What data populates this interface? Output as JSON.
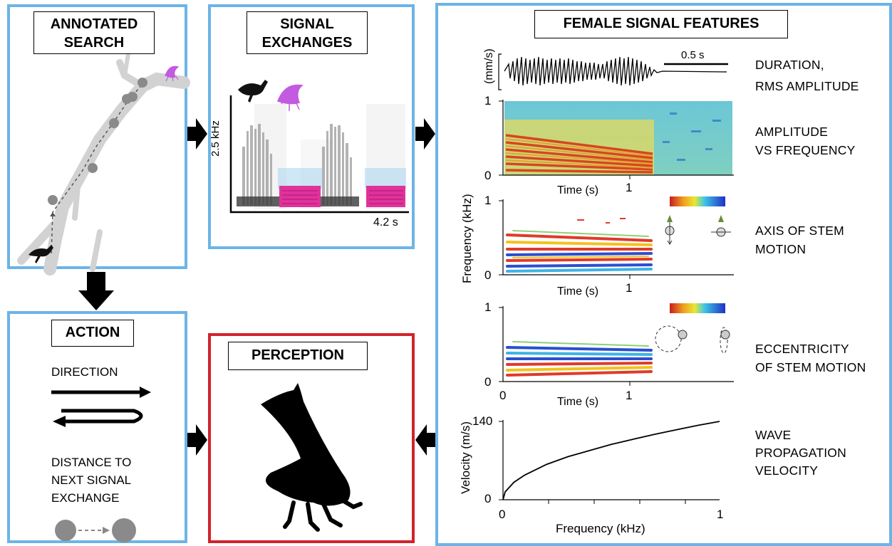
{
  "panels": {
    "annotated_search": {
      "title_line1": "ANNOTATED",
      "title_line2": "SEARCH"
    },
    "signal_exchanges": {
      "title_line1": "SIGNAL",
      "title_line2": "EXCHANGES",
      "y_axis_label": "2.5 kHz",
      "x_axis_label": "4.2 s"
    },
    "action": {
      "title": "ACTION",
      "direction_label": "DIRECTION",
      "distance_line1": "DISTANCE TO",
      "distance_line2": "NEXT SIGNAL",
      "distance_line3": "EXCHANGE"
    },
    "perception": {
      "title": "PERCEPTION"
    },
    "female_signal_features": {
      "title": "FEMALE SIGNAL FEATURES",
      "waveform": {
        "y_label": "(mm/s)",
        "scale_label": "0.5 s"
      },
      "plot_ticks": {
        "zero": "0",
        "one": "1"
      },
      "shared_y_label": "Frequency (kHz)",
      "time_label": "Time (s)",
      "velocity_plot": {
        "y_label": "Velocity (m/s)",
        "x_label": "Frequency (kHz)",
        "y_tick_top": "140"
      },
      "features": [
        {
          "line1": "DURATION,",
          "line2": "RMS AMPLITUDE"
        },
        {
          "line1": "AMPLITUDE",
          "line2": "VS FREQUENCY"
        },
        {
          "line1": "AXIS OF STEM",
          "line2": "MOTION"
        },
        {
          "line1": "ECCENTRICITY",
          "line2": "OF STEM MOTION"
        },
        {
          "line1": "WAVE",
          "line2": "PROPAGATION",
          "line3": "VELOCITY"
        }
      ]
    }
  },
  "chart_data": {
    "type": "line",
    "xlabel": "Frequency (kHz)",
    "ylabel": "Velocity (m/s)",
    "xlim": [
      0,
      1
    ],
    "ylim": [
      0,
      140
    ],
    "x_ticks": [
      "0",
      "1"
    ],
    "y_ticks": [
      "0",
      "140"
    ],
    "x": [
      0.0,
      0.01,
      0.05,
      0.1,
      0.2,
      0.3,
      0.4,
      0.5,
      0.6,
      0.7,
      0.8,
      0.9,
      1.0
    ],
    "y": [
      0,
      14,
      31,
      44,
      63,
      77,
      88,
      99,
      108,
      117,
      125,
      133,
      140
    ]
  },
  "colors": {
    "panel_blue": "#6cb4e6",
    "panel_red": "#d2232a",
    "insect_magenta": "#c25be0",
    "spectrogram_magenta": "#e0339a",
    "branch_gray": "#d2d2d2",
    "marker_gray": "#8a8a8a"
  },
  "icons": [
    "insect-silhouette-icon",
    "treehopper-silhouette-icon",
    "arrow-right-icon",
    "arrow-down-icon",
    "arrow-left-icon"
  ]
}
